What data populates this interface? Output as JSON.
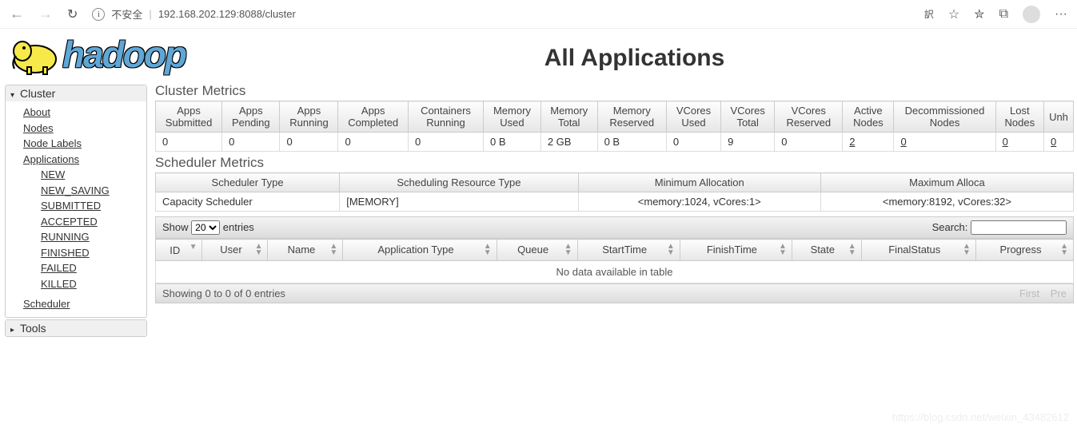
{
  "browser": {
    "insecure_label": "不安全",
    "url": "192.168.202.129:8088/cluster"
  },
  "header": {
    "logo_text": "hadoop",
    "page_title": "All Applications"
  },
  "sidebar": {
    "cluster": {
      "title": "Cluster",
      "links": {
        "about": "About",
        "nodes": "Nodes",
        "node_labels": "Node Labels",
        "applications": "Applications",
        "app_states": [
          "NEW",
          "NEW_SAVING",
          "SUBMITTED",
          "ACCEPTED",
          "RUNNING",
          "FINISHED",
          "FAILED",
          "KILLED"
        ],
        "scheduler": "Scheduler"
      }
    },
    "tools": {
      "title": "Tools"
    }
  },
  "cluster_metrics": {
    "title": "Cluster Metrics",
    "headers": [
      "Apps Submitted",
      "Apps Pending",
      "Apps Running",
      "Apps Completed",
      "Containers Running",
      "Memory Used",
      "Memory Total",
      "Memory Reserved",
      "VCores Used",
      "VCores Total",
      "VCores Reserved",
      "Active Nodes",
      "Decommissioned Nodes",
      "Lost Nodes",
      "Unh"
    ],
    "values": [
      "0",
      "0",
      "0",
      "0",
      "0",
      "0 B",
      "2 GB",
      "0 B",
      "0",
      "9",
      "0",
      "2",
      "0",
      "0",
      "0"
    ],
    "link_cols": [
      11,
      12,
      13,
      14
    ]
  },
  "scheduler_metrics": {
    "title": "Scheduler Metrics",
    "headers": [
      "Scheduler Type",
      "Scheduling Resource Type",
      "Minimum Allocation",
      "Maximum Alloca"
    ],
    "values": [
      "Capacity Scheduler",
      "[MEMORY]",
      "<memory:1024, vCores:1>",
      "<memory:8192, vCores:32>"
    ]
  },
  "datatable": {
    "show_label": "Show",
    "entries_label": "entries",
    "page_size": "20",
    "search_label": "Search:",
    "columns": [
      "ID",
      "User",
      "Name",
      "Application Type",
      "Queue",
      "StartTime",
      "FinishTime",
      "State",
      "FinalStatus",
      "Progress"
    ],
    "no_data": "No data available in table",
    "info": "Showing 0 to 0 of 0 entries",
    "first": "First",
    "prev": "Pre"
  },
  "watermark": "https://blog.csdn.net/weixin_43482612"
}
